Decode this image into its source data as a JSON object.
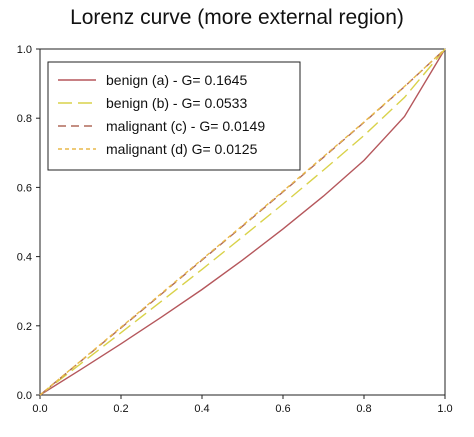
{
  "chart_data": {
    "type": "line",
    "title": "Lorenz curve (more external region)",
    "xlabel": "",
    "ylabel": "",
    "xlim": [
      0,
      1
    ],
    "ylim": [
      0,
      1
    ],
    "xticks": [
      "0.0",
      "0.2",
      "0.4",
      "0.6",
      "0.8",
      "1.0"
    ],
    "yticks": [
      "0.0",
      "0.2",
      "0.4",
      "0.6",
      "0.8",
      "1.0"
    ],
    "grid": false,
    "legend_position": "top-left",
    "series": [
      {
        "name": "benign (a) - G= 0.1645",
        "color": "#b5575c",
        "dash": "solid",
        "x": [
          0,
          0.1,
          0.2,
          0.3,
          0.4,
          0.5,
          0.6,
          0.7,
          0.8,
          0.9,
          1.0
        ],
        "y": [
          0,
          0.073,
          0.148,
          0.225,
          0.305,
          0.39,
          0.48,
          0.575,
          0.678,
          0.805,
          1.0
        ]
      },
      {
        "name": "benign (b) - G= 0.0533",
        "color": "#d9d24a",
        "dash": "long",
        "x": [
          0,
          0.1,
          0.2,
          0.3,
          0.4,
          0.5,
          0.6,
          0.7,
          0.8,
          0.9,
          1.0
        ],
        "y": [
          0,
          0.09,
          0.18,
          0.271,
          0.363,
          0.457,
          0.552,
          0.65,
          0.75,
          0.86,
          1.0
        ]
      },
      {
        "name": "malignant (c) - G= 0.0149",
        "color": "#b06a5a",
        "dash": "medium",
        "x": [
          0,
          0.1,
          0.2,
          0.3,
          0.4,
          0.5,
          0.6,
          0.7,
          0.8,
          0.9,
          1.0
        ],
        "y": [
          0,
          0.097,
          0.194,
          0.292,
          0.39,
          0.488,
          0.587,
          0.687,
          0.788,
          0.891,
          1.0
        ]
      },
      {
        "name": "malignant (d) G= 0.0125",
        "color": "#e8b84a",
        "dash": "short",
        "x": [
          0,
          0.1,
          0.2,
          0.3,
          0.4,
          0.5,
          0.6,
          0.7,
          0.8,
          0.9,
          1.0
        ],
        "y": [
          0,
          0.098,
          0.196,
          0.294,
          0.392,
          0.49,
          0.589,
          0.689,
          0.789,
          0.892,
          1.0
        ]
      }
    ]
  }
}
